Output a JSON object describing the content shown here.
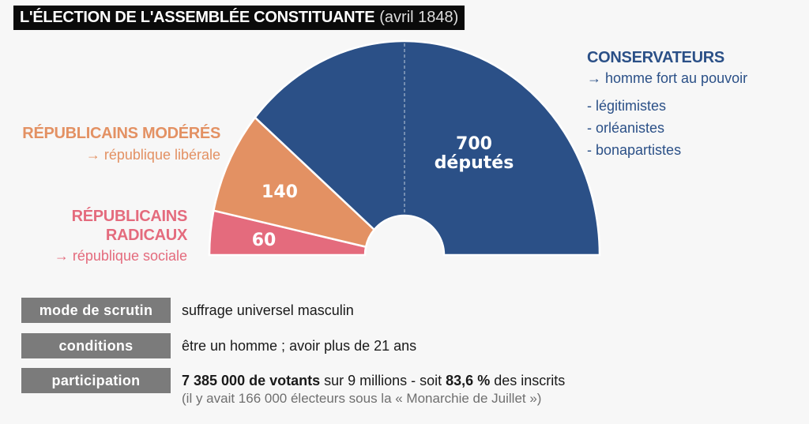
{
  "header": {
    "title": "L'ÉLECTION DE L'ASSEMBLÉE CONSTITUANTE",
    "subtitle": "(avril 1848)"
  },
  "chart_data": {
    "type": "pie",
    "subtype": "half-donut (parliament)",
    "title": "L'ÉLECTION DE L'ASSEMBLÉE CONSTITUANTE (avril 1848)",
    "unit": "députés",
    "total": 900,
    "series": [
      {
        "name": "Républicains radicaux",
        "value": 60,
        "label": "60",
        "color": "#e46b7d"
      },
      {
        "name": "Républicains modérés",
        "value": 140,
        "label": "140",
        "color": "#e39163"
      },
      {
        "name": "Conservateurs",
        "value": 700,
        "label": "700",
        "label_line2": "députés",
        "color": "#2b5087"
      }
    ],
    "annotations": [
      "dashed vertical line marking the majority (half) of the assembly"
    ]
  },
  "legend": {
    "conservateurs": {
      "title": "CONSERVATEURS",
      "subtitle": "→ homme fort au pouvoir",
      "items": [
        "- légitimistes",
        "- orléanistes",
        "- bonapartistes"
      ],
      "color": "#2b5087"
    },
    "moderes": {
      "title": "RÉPUBLICAINS MODÉRÉS",
      "subtitle": "→ république libérale",
      "color": "#e39163"
    },
    "radicaux": {
      "title_line1": "RÉPUBLICAINS",
      "title_line2": "RADICAUX",
      "subtitle": "→ république sociale",
      "color": "#e46b7d"
    }
  },
  "info": {
    "rows": [
      {
        "label": "mode de scrutin",
        "value": "suffrage universel masculin"
      },
      {
        "label": "conditions",
        "value": "être un homme ; avoir plus de 21 ans"
      },
      {
        "label": "participation",
        "value_bold1": "7 385 000 de votants",
        "value_mid": " sur 9 millions - soit ",
        "value_bold2": "83,6 %",
        "value_end": " des inscrits",
        "note": "(il y avait 166 000 électeurs sous la « Monarchie de Juillet »)"
      }
    ]
  }
}
